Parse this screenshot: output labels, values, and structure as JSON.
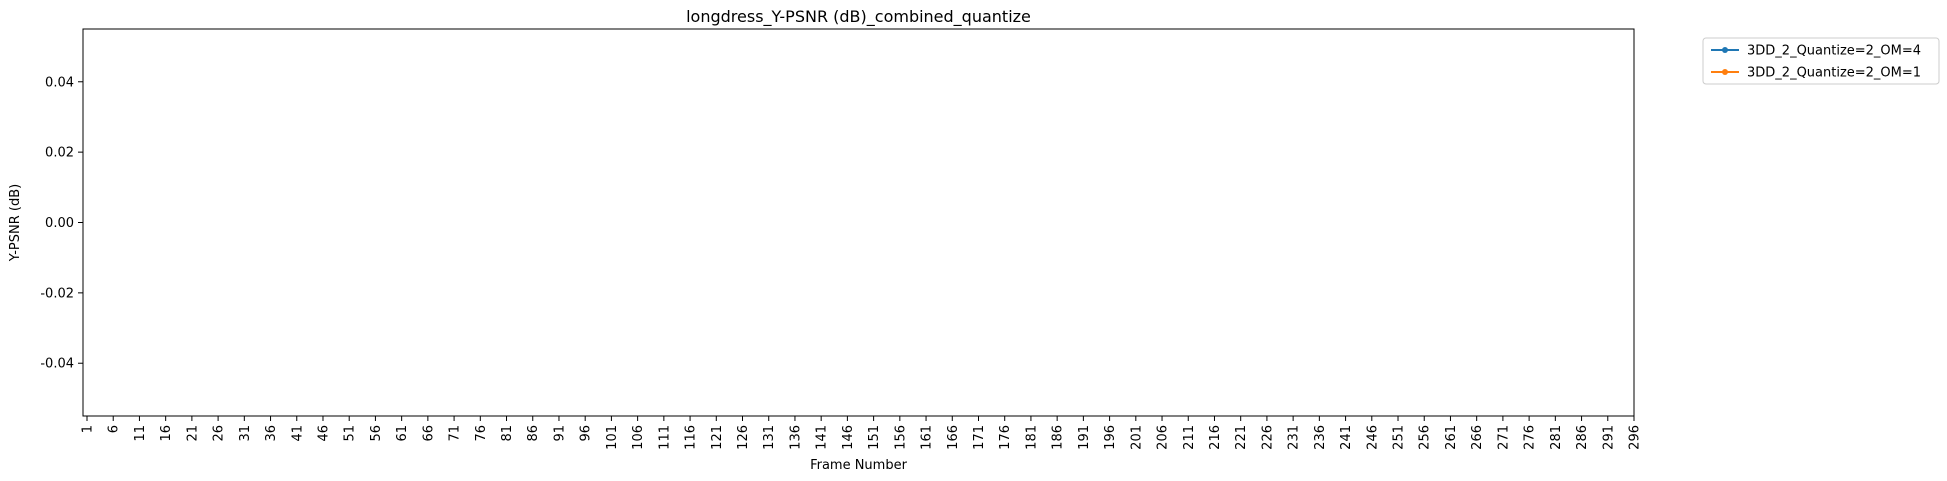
{
  "chart_data": {
    "type": "line",
    "title": "longdress_Y-PSNR (dB)_combined_quantize",
    "xlabel": "Frame Number",
    "ylabel": "Y-PSNR (dB)",
    "ylim": [
      -0.055,
      0.055
    ],
    "yticks": [
      "-0.04",
      "-0.02",
      "0.00",
      "0.02",
      "0.04"
    ],
    "ytick_values": [
      -0.04,
      -0.02,
      0.0,
      0.02,
      0.04
    ],
    "x_categories": [
      "1",
      "6",
      "11",
      "16",
      "21",
      "26",
      "31",
      "36",
      "41",
      "46",
      "51",
      "56",
      "61",
      "66",
      "71",
      "76",
      "81",
      "86",
      "91",
      "96",
      "101",
      "106",
      "111",
      "116",
      "121",
      "126",
      "131",
      "136",
      "141",
      "146",
      "151",
      "156",
      "161",
      "166",
      "171",
      "176",
      "181",
      "186",
      "191",
      "196",
      "201",
      "206",
      "211",
      "216",
      "221",
      "226",
      "231",
      "236",
      "241",
      "246",
      "251",
      "256",
      "261",
      "266",
      "271",
      "276",
      "281",
      "286",
      "291",
      "296"
    ],
    "grid": false,
    "legend_position": "outside-top-right",
    "series": [
      {
        "name": "3DD_2_Quantize=2_OM=4",
        "color": "#1f77b4",
        "values": []
      },
      {
        "name": "3DD_2_Quantize=2_OM=1",
        "color": "#ff7f0e",
        "values": []
      }
    ]
  }
}
